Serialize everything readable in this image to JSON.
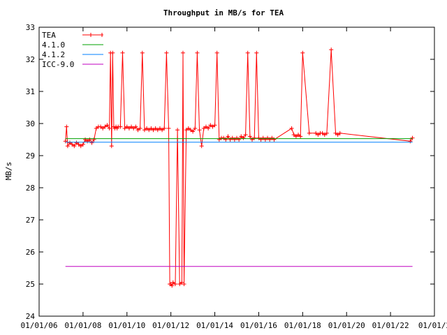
{
  "chart_data": {
    "type": "line",
    "title": "Throughput in MB/s for TEA",
    "xlabel": "",
    "ylabel": "MB/s",
    "ylim": [
      24,
      33
    ],
    "x_tick_labels": [
      "01/01/06",
      "01/01/08",
      "01/01/10",
      "01/01/12",
      "01/01/14",
      "01/01/16",
      "01/01/18",
      "01/01/20",
      "01/01/22",
      "01/01/2"
    ],
    "y_tick_labels": [
      "24",
      "25",
      "26",
      "27",
      "28",
      "29",
      "30",
      "31",
      "32",
      "33"
    ],
    "x_tick_positions": [
      0,
      2,
      4,
      6,
      8,
      10,
      12,
      14,
      16,
      18
    ],
    "y_tick_values": [
      24,
      25,
      26,
      27,
      28,
      29,
      30,
      31,
      32,
      33
    ],
    "xlim": [
      0,
      18
    ],
    "grid": false,
    "legend_placement": "top-left",
    "series": [
      {
        "name": "TEA",
        "color": "#ff0000",
        "marker": "plus",
        "x": [
          1.2,
          1.25,
          1.3,
          1.4,
          1.5,
          1.6,
          1.7,
          1.8,
          1.9,
          2.0,
          2.1,
          2.2,
          2.3,
          2.4,
          2.5,
          2.6,
          2.7,
          2.8,
          2.9,
          3.0,
          3.1,
          3.2,
          3.25,
          3.3,
          3.35,
          3.4,
          3.45,
          3.5,
          3.55,
          3.6,
          3.7,
          3.8,
          3.9,
          4.0,
          4.1,
          4.2,
          4.3,
          4.4,
          4.5,
          4.6,
          4.7,
          4.8,
          4.9,
          5.0,
          5.1,
          5.2,
          5.3,
          5.4,
          5.5,
          5.6,
          5.7,
          5.8,
          5.9,
          5.95,
          6.0,
          6.05,
          6.1,
          6.2,
          6.3,
          6.4,
          6.5,
          6.55,
          6.6,
          6.7,
          6.8,
          6.9,
          7.0,
          7.1,
          7.2,
          7.3,
          7.4,
          7.5,
          7.6,
          7.7,
          7.8,
          7.9,
          8.0,
          8.1,
          8.2,
          8.3,
          8.4,
          8.5,
          8.6,
          8.7,
          8.8,
          8.9,
          9.0,
          9.1,
          9.2,
          9.3,
          9.4,
          9.5,
          9.6,
          9.7,
          9.8,
          9.9,
          10.0,
          10.1,
          10.2,
          10.3,
          10.4,
          10.5,
          10.6,
          10.7,
          11.5,
          11.6,
          11.7,
          11.8,
          11.9,
          12.0,
          12.3,
          12.6,
          12.7,
          12.8,
          12.9,
          13.0,
          13.1,
          13.3,
          13.5,
          13.6,
          13.7,
          16.9,
          17.0
        ],
        "y": [
          29.45,
          29.9,
          29.3,
          29.4,
          29.35,
          29.3,
          29.4,
          29.35,
          29.3,
          29.35,
          29.5,
          29.45,
          29.5,
          29.4,
          29.5,
          29.85,
          29.9,
          29.9,
          29.85,
          29.9,
          29.95,
          29.85,
          32.2,
          29.3,
          32.2,
          29.9,
          29.85,
          29.9,
          29.85,
          29.9,
          29.9,
          32.2,
          29.85,
          29.9,
          29.85,
          29.9,
          29.85,
          29.9,
          29.8,
          29.85,
          32.2,
          29.8,
          29.85,
          29.8,
          29.85,
          29.8,
          29.85,
          29.8,
          29.85,
          29.8,
          29.85,
          32.2,
          29.85,
          25.0,
          25.0,
          24.95,
          25.05,
          25.0,
          29.8,
          25.0,
          25.05,
          32.2,
          25.0,
          29.8,
          29.85,
          29.8,
          29.75,
          29.85,
          32.2,
          29.8,
          29.3,
          29.85,
          29.9,
          29.85,
          29.95,
          29.9,
          29.95,
          32.2,
          29.5,
          29.55,
          29.55,
          29.5,
          29.6,
          29.5,
          29.55,
          29.5,
          29.55,
          29.5,
          29.6,
          29.55,
          29.65,
          32.2,
          29.6,
          29.5,
          29.55,
          32.2,
          29.55,
          29.5,
          29.55,
          29.5,
          29.55,
          29.5,
          29.55,
          29.5,
          29.85,
          29.65,
          29.6,
          29.65,
          29.6,
          32.2,
          29.7,
          29.7,
          29.65,
          29.7,
          29.7,
          29.65,
          29.7,
          32.3,
          29.7,
          29.65,
          29.7,
          29.45,
          29.55
        ]
      },
      {
        "name": "4.1.0",
        "color": "#00a000",
        "marker": "none",
        "x": [
          1.2,
          17.0
        ],
        "y": [
          29.53,
          29.53
        ]
      },
      {
        "name": "4.1.2",
        "color": "#0080ff",
        "marker": "none",
        "x": [
          1.2,
          17.0
        ],
        "y": [
          29.42,
          29.42
        ]
      },
      {
        "name": "ICC-9.0",
        "color": "#c000c0",
        "marker": "none",
        "x": [
          1.2,
          17.0
        ],
        "y": [
          25.55,
          25.55
        ]
      }
    ]
  }
}
